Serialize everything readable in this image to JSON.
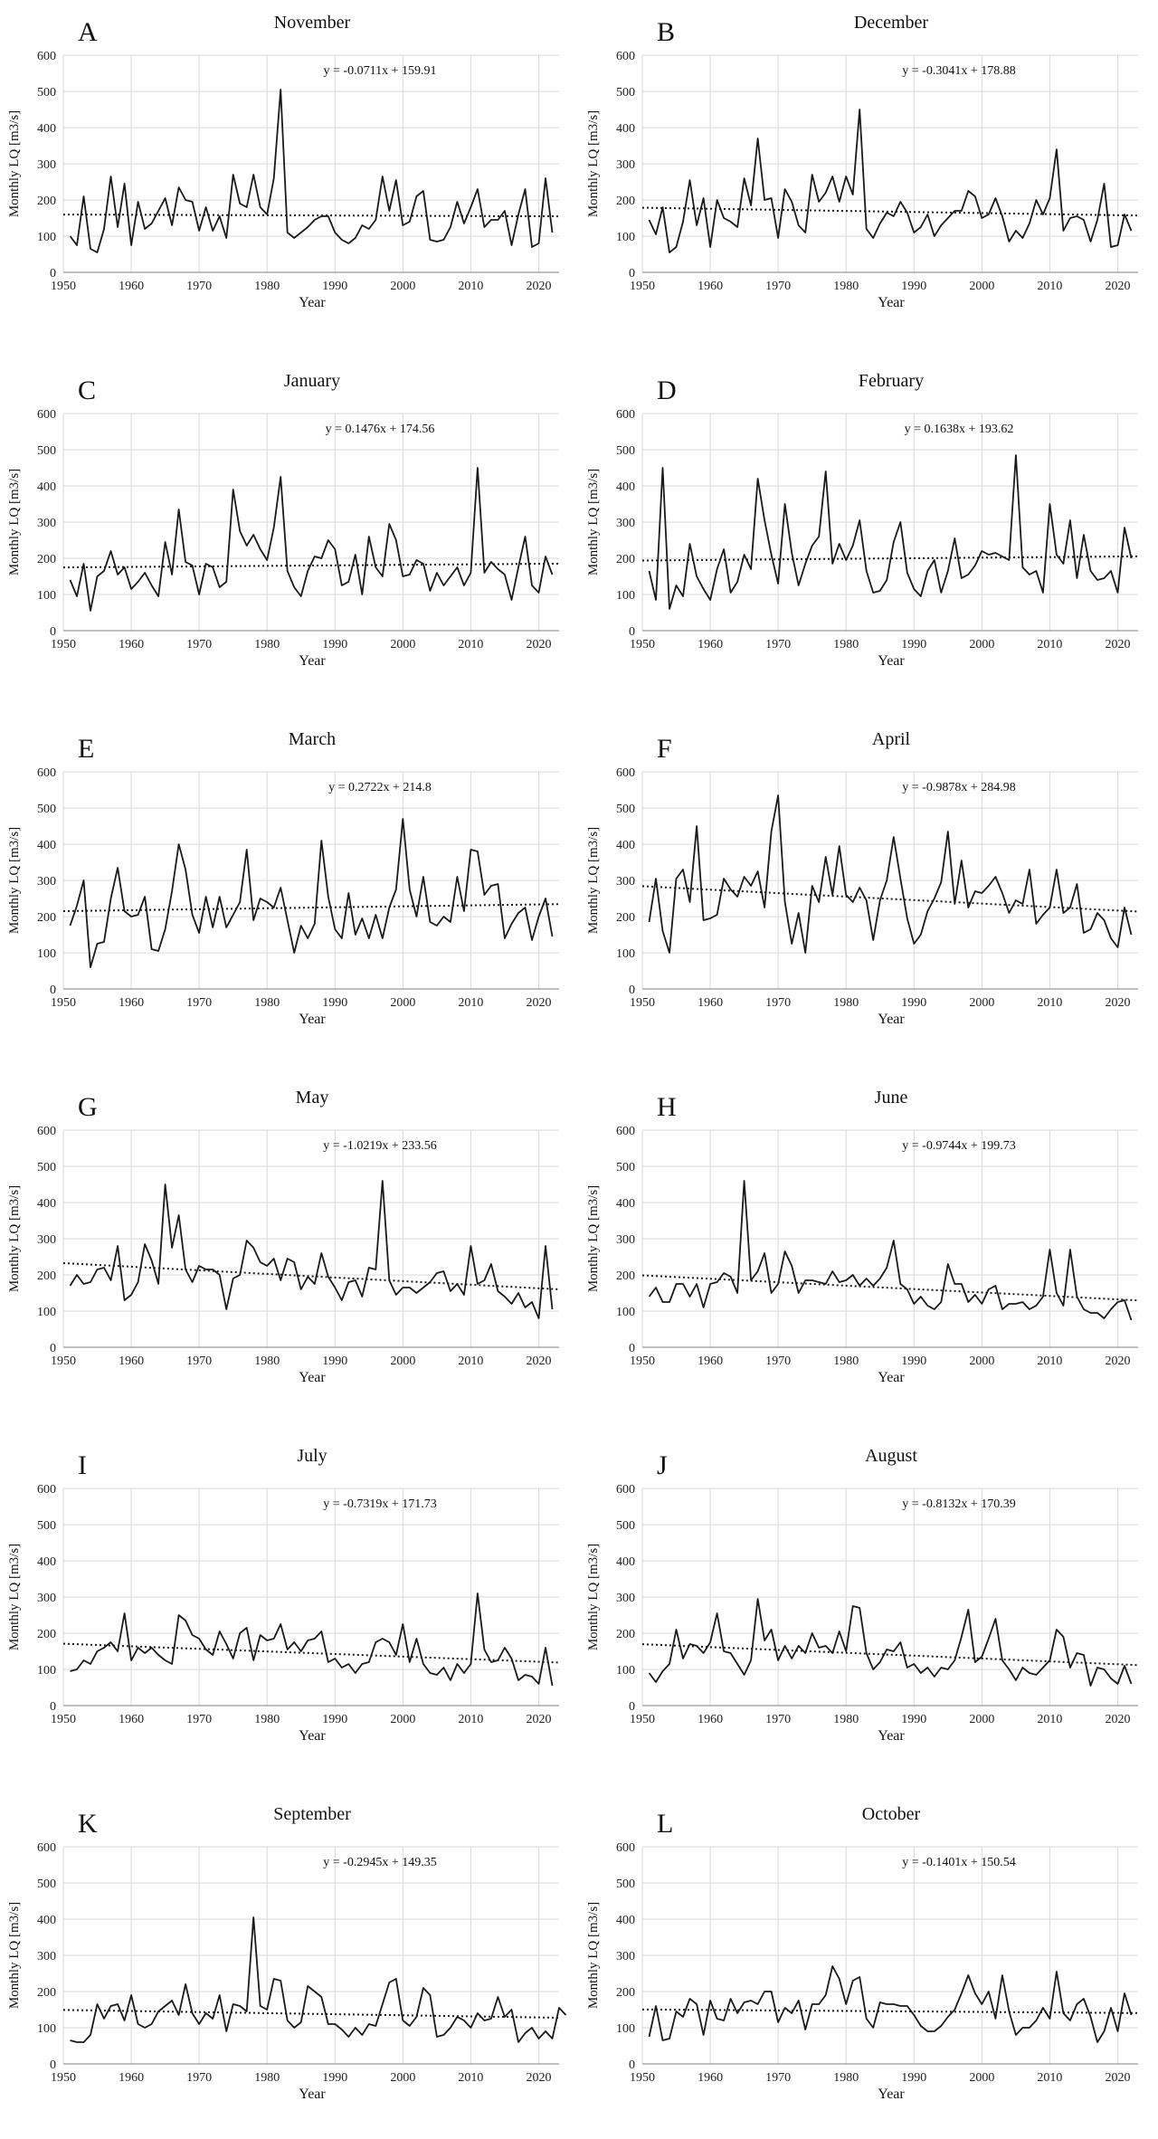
{
  "figure": {
    "y_axis_label": "Monthly LQ [m3/s]",
    "x_axis_label": "Year",
    "y_ticks": [
      0,
      100,
      200,
      300,
      400,
      500,
      600
    ],
    "x_ticks": [
      1950,
      1960,
      1970,
      1980,
      1990,
      2000,
      2010,
      2020
    ]
  },
  "chart_data": [
    {
      "panel": "A",
      "type": "line",
      "title": "November",
      "equation": "y = -0.0711x + 159.91",
      "slope": -0.0711,
      "intercept": 159.91,
      "xlabel": "Year",
      "ylabel": "Monthly LQ [m3/s]",
      "xlim": [
        1950,
        2023
      ],
      "ylim": [
        0,
        600
      ],
      "start_year": 1951,
      "values": [
        100,
        75,
        210,
        65,
        55,
        120,
        265,
        125,
        245,
        75,
        195,
        120,
        135,
        170,
        205,
        130,
        235,
        200,
        195,
        115,
        180,
        115,
        155,
        95,
        270,
        190,
        180,
        270,
        180,
        160,
        260,
        505,
        110,
        95,
        110,
        125,
        145,
        155,
        155,
        110,
        90,
        80,
        95,
        130,
        120,
        145,
        265,
        170,
        255,
        130,
        140,
        210,
        225,
        90,
        85,
        90,
        125,
        195,
        135,
        180,
        230,
        125,
        145,
        145,
        170,
        75,
        160,
        230,
        70,
        80,
        260,
        110
      ]
    },
    {
      "panel": "B",
      "type": "line",
      "title": "December",
      "equation": "y = -0.3041x + 178.88",
      "slope": -0.3041,
      "intercept": 178.88,
      "xlabel": "Year",
      "ylabel": "Monthly LQ [m3/s]",
      "xlim": [
        1950,
        2023
      ],
      "ylim": [
        0,
        600
      ],
      "start_year": 1951,
      "values": [
        145,
        105,
        180,
        55,
        70,
        140,
        255,
        130,
        205,
        70,
        200,
        150,
        140,
        125,
        260,
        185,
        370,
        200,
        205,
        95,
        230,
        195,
        130,
        110,
        270,
        195,
        220,
        265,
        195,
        265,
        215,
        450,
        120,
        95,
        135,
        165,
        155,
        195,
        165,
        110,
        125,
        160,
        100,
        130,
        150,
        170,
        170,
        225,
        210,
        150,
        160,
        205,
        155,
        85,
        115,
        95,
        135,
        200,
        160,
        205,
        340,
        115,
        150,
        155,
        145,
        85,
        145,
        245,
        70,
        75,
        160,
        115
      ]
    },
    {
      "panel": "C",
      "type": "line",
      "title": "January",
      "equation": "y = 0.1476x + 174.56",
      "slope": 0.1476,
      "intercept": 174.56,
      "xlabel": "Year",
      "ylabel": "Monthly LQ [m3/s]",
      "xlim": [
        1950,
        2023
      ],
      "ylim": [
        0,
        600
      ],
      "start_year": 1951,
      "values": [
        140,
        95,
        185,
        55,
        150,
        165,
        220,
        155,
        175,
        115,
        135,
        160,
        125,
        95,
        245,
        155,
        335,
        190,
        180,
        100,
        185,
        175,
        120,
        135,
        390,
        275,
        235,
        265,
        225,
        195,
        285,
        425,
        165,
        120,
        95,
        165,
        205,
        200,
        250,
        225,
        125,
        135,
        210,
        100,
        260,
        175,
        150,
        295,
        250,
        150,
        155,
        195,
        185,
        110,
        160,
        125,
        150,
        175,
        125,
        160,
        450,
        160,
        190,
        170,
        155,
        85,
        175,
        260,
        125,
        105,
        205,
        155
      ]
    },
    {
      "panel": "D",
      "type": "line",
      "title": "February",
      "equation": "y = 0.1638x + 193.62",
      "slope": 0.1638,
      "intercept": 193.62,
      "xlabel": "Year",
      "ylabel": "Monthly LQ [m3/s]",
      "xlim": [
        1950,
        2023
      ],
      "ylim": [
        0,
        600
      ],
      "start_year": 1951,
      "values": [
        165,
        85,
        450,
        60,
        125,
        95,
        240,
        150,
        115,
        85,
        170,
        225,
        105,
        135,
        210,
        170,
        420,
        305,
        210,
        130,
        350,
        215,
        125,
        185,
        235,
        260,
        440,
        185,
        240,
        195,
        235,
        305,
        165,
        105,
        110,
        140,
        245,
        300,
        160,
        115,
        95,
        165,
        195,
        105,
        165,
        255,
        145,
        155,
        180,
        220,
        210,
        215,
        205,
        195,
        485,
        175,
        155,
        165,
        105,
        350,
        210,
        185,
        305,
        145,
        265,
        165,
        140,
        145,
        165,
        105,
        285,
        200
      ]
    },
    {
      "panel": "E",
      "type": "line",
      "title": "March",
      "equation": "y = 0.2722x + 214.8",
      "slope": 0.2722,
      "intercept": 214.8,
      "xlabel": "Year",
      "ylabel": "Monthly LQ [m3/s]",
      "xlim": [
        1950,
        2023
      ],
      "ylim": [
        0,
        600
      ],
      "start_year": 1951,
      "values": [
        175,
        230,
        300,
        60,
        125,
        130,
        250,
        335,
        215,
        200,
        205,
        255,
        110,
        105,
        165,
        270,
        400,
        330,
        205,
        155,
        255,
        170,
        255,
        170,
        205,
        240,
        385,
        190,
        250,
        240,
        225,
        280,
        190,
        100,
        175,
        140,
        180,
        410,
        255,
        165,
        140,
        265,
        150,
        195,
        140,
        205,
        140,
        225,
        275,
        470,
        275,
        200,
        310,
        185,
        175,
        200,
        185,
        310,
        215,
        385,
        380,
        260,
        285,
        290,
        140,
        180,
        210,
        225,
        135,
        200,
        250,
        145
      ]
    },
    {
      "panel": "F",
      "type": "line",
      "title": "April",
      "equation": "y = -0.9878x + 284.98",
      "slope": -0.9878,
      "intercept": 284.98,
      "xlabel": "Year",
      "ylabel": "Monthly LQ [m3/s]",
      "xlim": [
        1950,
        2023
      ],
      "ylim": [
        0,
        600
      ],
      "start_year": 1951,
      "values": [
        185,
        305,
        160,
        100,
        305,
        330,
        240,
        450,
        190,
        195,
        205,
        305,
        275,
        255,
        310,
        285,
        325,
        225,
        435,
        535,
        240,
        125,
        210,
        100,
        285,
        240,
        365,
        260,
        395,
        260,
        240,
        280,
        245,
        135,
        245,
        300,
        420,
        305,
        195,
        125,
        150,
        215,
        250,
        295,
        435,
        235,
        355,
        225,
        270,
        265,
        285,
        310,
        265,
        210,
        245,
        235,
        330,
        180,
        205,
        225,
        330,
        210,
        225,
        290,
        155,
        165,
        210,
        190,
        140,
        115,
        225,
        150
      ]
    },
    {
      "panel": "G",
      "type": "line",
      "title": "May",
      "equation": "y = -1.0219x + 233.56",
      "slope": -1.0219,
      "intercept": 233.56,
      "xlabel": "Year",
      "ylabel": "Monthly LQ [m3/s]",
      "xlim": [
        1950,
        2023
      ],
      "ylim": [
        0,
        600
      ],
      "start_year": 1951,
      "values": [
        170,
        200,
        175,
        180,
        215,
        220,
        185,
        280,
        130,
        145,
        180,
        285,
        240,
        175,
        450,
        275,
        365,
        215,
        180,
        225,
        215,
        215,
        200,
        105,
        190,
        200,
        295,
        275,
        235,
        225,
        245,
        185,
        245,
        235,
        160,
        195,
        175,
        260,
        195,
        165,
        130,
        180,
        185,
        140,
        220,
        215,
        460,
        185,
        145,
        165,
        165,
        150,
        165,
        180,
        205,
        210,
        155,
        175,
        145,
        280,
        175,
        185,
        230,
        155,
        140,
        120,
        150,
        110,
        125,
        80,
        280,
        105
      ]
    },
    {
      "panel": "H",
      "type": "line",
      "title": "June",
      "equation": "y = -0.9744x + 199.73",
      "slope": -0.9744,
      "intercept": 199.73,
      "xlabel": "Year",
      "ylabel": "Monthly LQ [m3/s]",
      "xlim": [
        1950,
        2023
      ],
      "ylim": [
        0,
        600
      ],
      "start_year": 1951,
      "values": [
        140,
        165,
        125,
        125,
        175,
        175,
        140,
        175,
        110,
        175,
        180,
        205,
        195,
        150,
        460,
        185,
        210,
        260,
        150,
        175,
        265,
        225,
        150,
        185,
        185,
        180,
        175,
        210,
        180,
        185,
        200,
        170,
        190,
        170,
        190,
        220,
        295,
        175,
        160,
        120,
        140,
        115,
        105,
        125,
        230,
        175,
        175,
        125,
        145,
        120,
        160,
        170,
        105,
        120,
        120,
        125,
        105,
        115,
        140,
        270,
        150,
        115,
        270,
        140,
        105,
        95,
        95,
        80,
        105,
        125,
        130,
        75
      ]
    },
    {
      "panel": "I",
      "type": "line",
      "title": "July",
      "equation": "y = -0.7319x + 171.73",
      "slope": -0.7319,
      "intercept": 171.73,
      "xlabel": "Year",
      "ylabel": "Monthly LQ [m3/s]",
      "xlim": [
        1950,
        2023
      ],
      "ylim": [
        0,
        600
      ],
      "start_year": 1951,
      "values": [
        95,
        100,
        125,
        115,
        150,
        160,
        175,
        150,
        255,
        125,
        160,
        145,
        160,
        140,
        125,
        115,
        250,
        235,
        195,
        185,
        155,
        140,
        205,
        170,
        130,
        200,
        215,
        125,
        195,
        180,
        185,
        225,
        155,
        175,
        150,
        180,
        185,
        205,
        120,
        130,
        105,
        115,
        90,
        115,
        120,
        175,
        185,
        175,
        140,
        225,
        120,
        185,
        115,
        90,
        85,
        105,
        70,
        115,
        90,
        115,
        310,
        155,
        120,
        125,
        160,
        130,
        70,
        85,
        80,
        60,
        160,
        55
      ]
    },
    {
      "panel": "J",
      "type": "line",
      "title": "August",
      "equation": "y = -0.8132x + 170.39",
      "slope": -0.8132,
      "intercept": 170.39,
      "xlabel": "Year",
      "ylabel": "Monthly LQ [m3/s]",
      "xlim": [
        1950,
        2023
      ],
      "ylim": [
        0,
        600
      ],
      "start_year": 1951,
      "values": [
        90,
        65,
        95,
        115,
        210,
        130,
        170,
        165,
        145,
        175,
        255,
        150,
        145,
        115,
        85,
        125,
        295,
        180,
        210,
        125,
        165,
        130,
        165,
        145,
        200,
        160,
        165,
        145,
        205,
        150,
        275,
        270,
        145,
        100,
        120,
        155,
        150,
        175,
        105,
        115,
        90,
        105,
        80,
        105,
        100,
        125,
        190,
        265,
        120,
        135,
        185,
        240,
        125,
        100,
        70,
        105,
        90,
        85,
        105,
        125,
        210,
        190,
        105,
        145,
        140,
        55,
        105,
        100,
        75,
        60,
        110,
        60
      ]
    },
    {
      "panel": "K",
      "type": "line",
      "title": "September",
      "equation": "y = -0.2945x + 149.35",
      "slope": -0.2945,
      "intercept": 149.35,
      "xlabel": "Year",
      "ylabel": "Monthly LQ [m3/s]",
      "xlim": [
        1950,
        2023
      ],
      "ylim": [
        0,
        600
      ],
      "start_year": 1951,
      "values": [
        65,
        60,
        60,
        80,
        165,
        125,
        160,
        165,
        120,
        190,
        110,
        100,
        110,
        145,
        160,
        175,
        135,
        220,
        140,
        110,
        140,
        125,
        190,
        90,
        165,
        160,
        145,
        405,
        160,
        150,
        235,
        230,
        120,
        100,
        115,
        215,
        200,
        185,
        110,
        110,
        95,
        75,
        100,
        80,
        110,
        105,
        165,
        225,
        235,
        120,
        105,
        130,
        210,
        190,
        75,
        80,
        100,
        130,
        120,
        100,
        140,
        120,
        125,
        185,
        130,
        150,
        60,
        85,
        100,
        70,
        90,
        70,
        155,
        135
      ]
    },
    {
      "panel": "L",
      "type": "line",
      "title": "October",
      "equation": "y = -0.1401x + 150.54",
      "slope": -0.1401,
      "intercept": 150.54,
      "xlabel": "Year",
      "ylabel": "Monthly LQ [m3/s]",
      "xlim": [
        1950,
        2023
      ],
      "ylim": [
        0,
        600
      ],
      "start_year": 1951,
      "values": [
        75,
        160,
        65,
        70,
        145,
        130,
        180,
        165,
        80,
        175,
        125,
        120,
        180,
        140,
        170,
        175,
        165,
        200,
        200,
        115,
        155,
        140,
        175,
        95,
        165,
        165,
        190,
        270,
        235,
        165,
        230,
        240,
        125,
        100,
        170,
        165,
        165,
        160,
        160,
        135,
        105,
        90,
        90,
        105,
        130,
        150,
        195,
        245,
        195,
        165,
        200,
        125,
        245,
        145,
        80,
        100,
        100,
        120,
        155,
        125,
        255,
        140,
        120,
        165,
        180,
        130,
        60,
        90,
        155,
        90,
        195,
        135
      ]
    }
  ]
}
